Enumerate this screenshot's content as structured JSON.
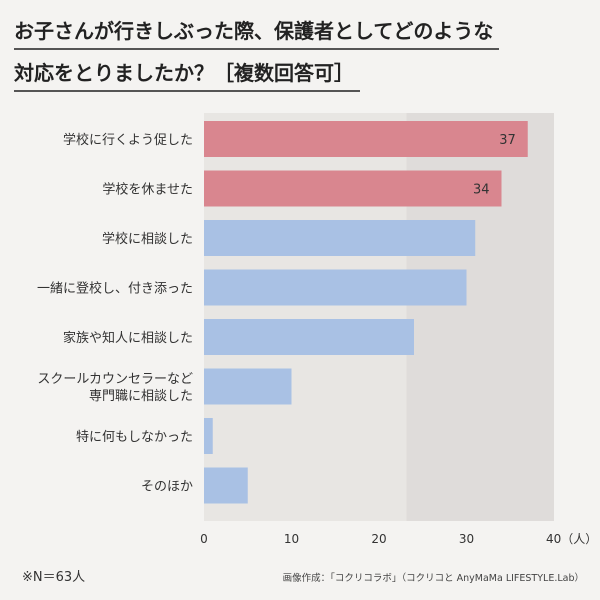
{
  "title_lines": [
    "お子さんが行きしぶった際、保護者としてどのような",
    "対応をとりましたか？［複数回答可］"
  ],
  "footnote": "※N＝63人",
  "source": "画像作成：「コクリコラボ」（コクリコと AnyMaMa LIFESTYLE.Lab）",
  "colors": {
    "highlight_bar": "#d9868f",
    "normal_bar": "#a9c1e4",
    "plot_bg": "#e8e6e3",
    "plot_bg_dark": "#d8d6d3"
  },
  "chart_data": {
    "type": "bar",
    "orientation": "horizontal",
    "categories": [
      [
        "学校に行くよう促した"
      ],
      [
        "学校を休ませた"
      ],
      [
        "学校に相談した"
      ],
      [
        "一緒に登校し、付き添った"
      ],
      [
        "家族や知人に相談した"
      ],
      [
        "スクールカウンセラーなど",
        "専門職に相談した"
      ],
      [
        "特に何もしなかった"
      ],
      [
        "そのほか"
      ]
    ],
    "values": [
      37,
      34,
      31,
      30,
      24,
      10,
      1,
      5
    ],
    "data_labels": [
      "37",
      "34",
      "",
      "",
      "",
      "",
      "",
      ""
    ],
    "highlighted": [
      true,
      true,
      false,
      false,
      false,
      false,
      false,
      false
    ],
    "xlim": [
      0,
      40
    ],
    "xticks": [
      0,
      10,
      20,
      30,
      40
    ],
    "xtick_labels": [
      "0",
      "10",
      "20",
      "30",
      "40（人）"
    ],
    "grid": false
  }
}
